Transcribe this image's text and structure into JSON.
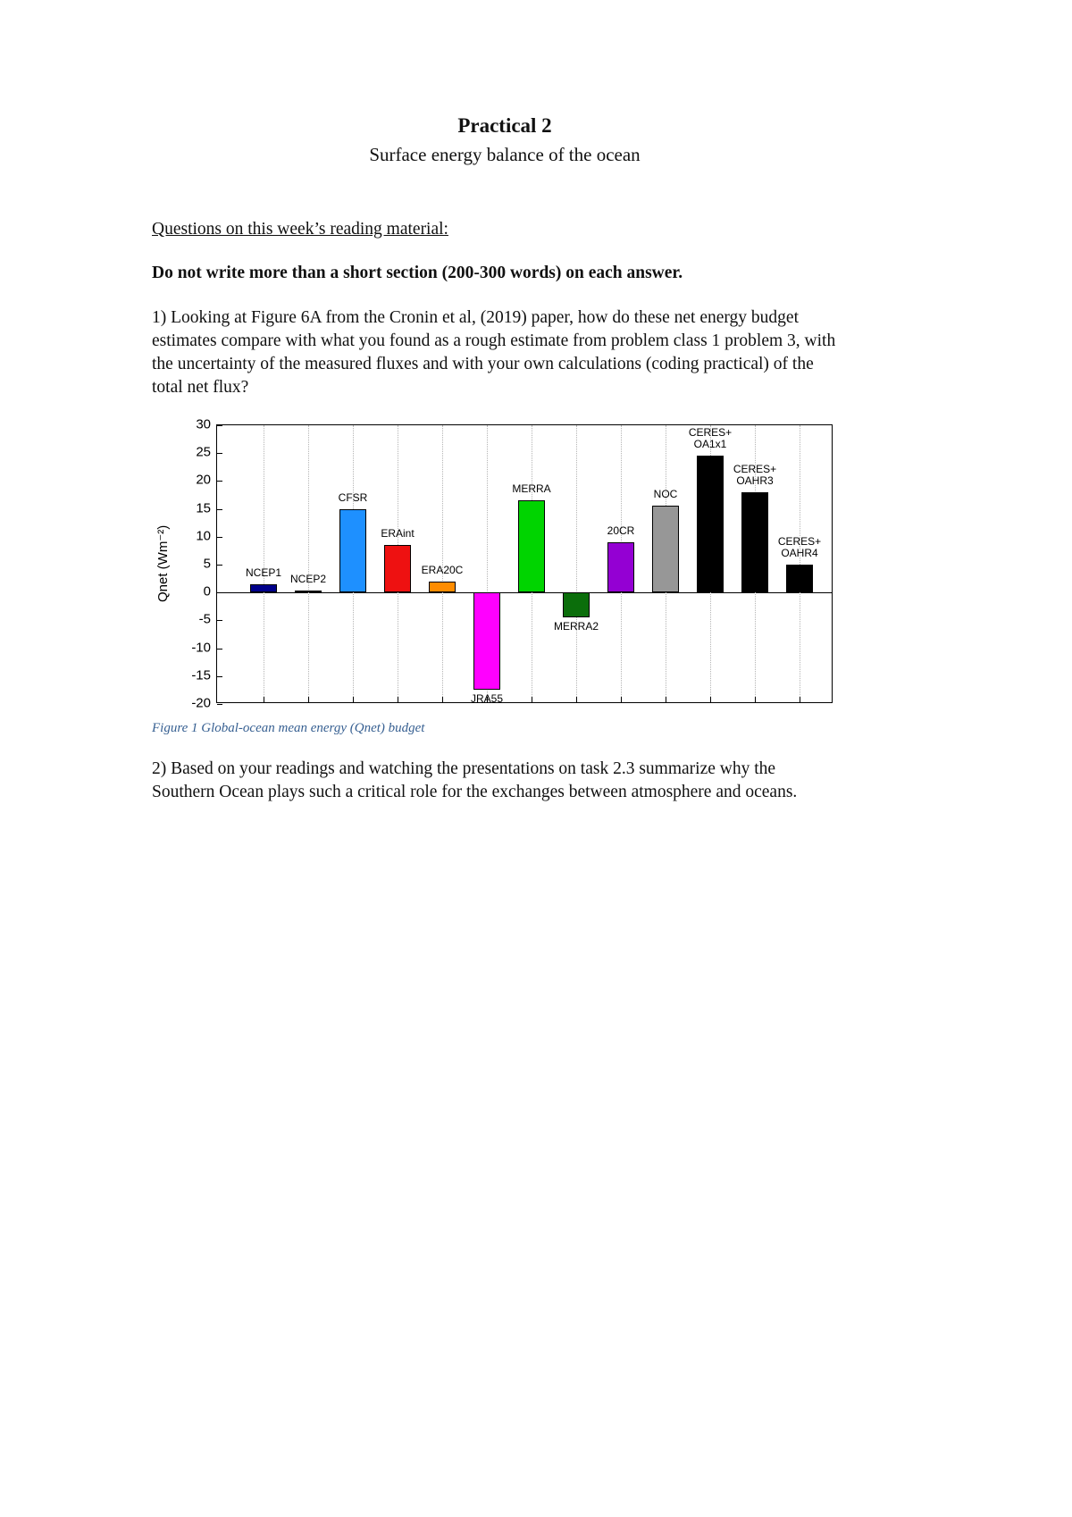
{
  "page": {
    "title": "Practical 2",
    "subtitle": "Surface energy balance of the ocean",
    "section_heading": "Questions on this week’s reading material: ",
    "instruction": "Do not write more than a short section (200-300 words) on each answer.",
    "question1": "1) Looking at Figure 6A from the Cronin et al, (2019) paper, how do these net energy budget estimates compare with what you found as a rough estimate from problem class 1 problem 3, with the uncertainty of the measured fluxes and with your own calculations (coding practical) of the total net flux?",
    "figure_caption": "Figure 1 Global-ocean mean energy (Qnet) budget",
    "question2": "2) Based on your readings and watching the presentations on task 2.3 summarize why the Southern Ocean plays such a critical role for the exchanges between atmosphere and oceans.",
    "caption_color": "#365f91"
  },
  "chart_data": {
    "type": "bar",
    "title": "",
    "xlabel": "",
    "ylabel": "Qnet (Wm⁻²)",
    "ylim": [
      -20,
      30
    ],
    "yticks": [
      30,
      25,
      20,
      15,
      10,
      5,
      0,
      -5,
      -10,
      -15,
      -20
    ],
    "grid": "vertical-dotted",
    "legend": "none",
    "categories": [
      "NCEP1",
      "NCEP2",
      "CFSR",
      "ERAint",
      "ERA20C",
      "JRA55",
      "MERRA",
      "MERRA2",
      "20CR",
      "NOC",
      "CERES+\nOA1x1",
      "CERES+\nOAHR3",
      "CERES+\nOAHR4"
    ],
    "values": [
      1.5,
      0.3,
      15,
      8.5,
      2,
      -17.5,
      16.5,
      -4.5,
      9,
      15.5,
      24.5,
      18,
      5
    ],
    "colors": [
      "#00008b",
      "#4aa0ff",
      "#1e90ff",
      "#ee1111",
      "#ff8c00",
      "#ff00ff",
      "#00d400",
      "#0b6e0b",
      "#9400d3",
      "#979797",
      "#000000",
      "#000000",
      "#000000"
    ]
  }
}
